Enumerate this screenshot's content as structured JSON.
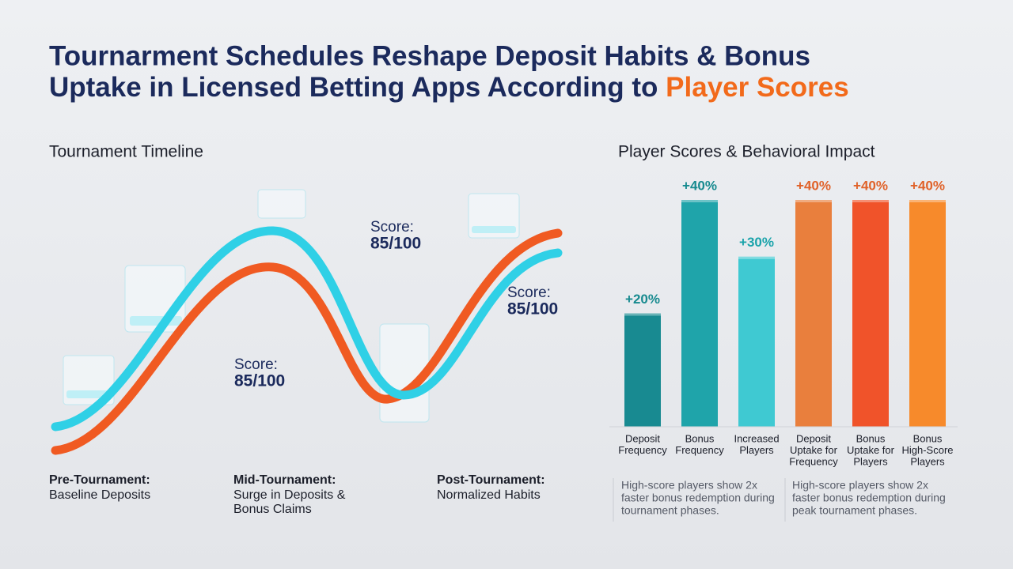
{
  "header": {
    "title_line1": "Tournarment Schedules Reshape Deposit Habits & Bonus",
    "title_line2": "Uptake in Licensed Betting Apps According to",
    "title_highlight": "Player Scores"
  },
  "timeline": {
    "heading": "Tournament Timeline",
    "scores": [
      "Score:",
      "85/100",
      "Score:",
      "85/100",
      "Score:",
      "85/100"
    ],
    "phases": [
      {
        "name": "Pre-Tournament:",
        "lines": [
          "Baseline Deposits"
        ]
      },
      {
        "name": "Mid-Tournament:",
        "lines": [
          "Surge in Deposits &",
          "Bonus Claims"
        ]
      },
      {
        "name": "Post-Tournament:",
        "lines": [
          "Normalized Habits"
        ]
      }
    ]
  },
  "chart_data": {
    "type": "bar",
    "title": "Player Scores & Behavioral Impact",
    "categories": [
      [
        "Deposit",
        "Frequency"
      ],
      [
        "Bonus",
        "Frequency"
      ],
      [
        "Increased",
        "Players"
      ],
      [
        "Deposit",
        "Uptake for",
        "Frequency"
      ],
      [
        "Bonus",
        "Uptake for",
        "Players"
      ],
      [
        "Bonus",
        "High-Score",
        "Players"
      ]
    ],
    "values": [
      20,
      40,
      30,
      40,
      40,
      40
    ],
    "value_labels": [
      "+20%",
      "+40%",
      "+30%",
      "+40%",
      "+40%",
      "+40%"
    ],
    "colors": [
      "#188a91",
      "#1fa4aa",
      "#3fc9d2",
      "#e97f3d",
      "#f0532a",
      "#f78a2b"
    ],
    "label_colors": [
      "#178a8f",
      "#178a8f",
      "#1aa3aa",
      "#e0622a",
      "#e0622a",
      "#e0622a"
    ]
  },
  "notes": [
    [
      "High-score players show 2x",
      "faster bonus redemption during",
      "tournament phases."
    ],
    [
      "High-score players show 2x",
      "faster bonus redemption during",
      "peak tournament phases."
    ]
  ]
}
